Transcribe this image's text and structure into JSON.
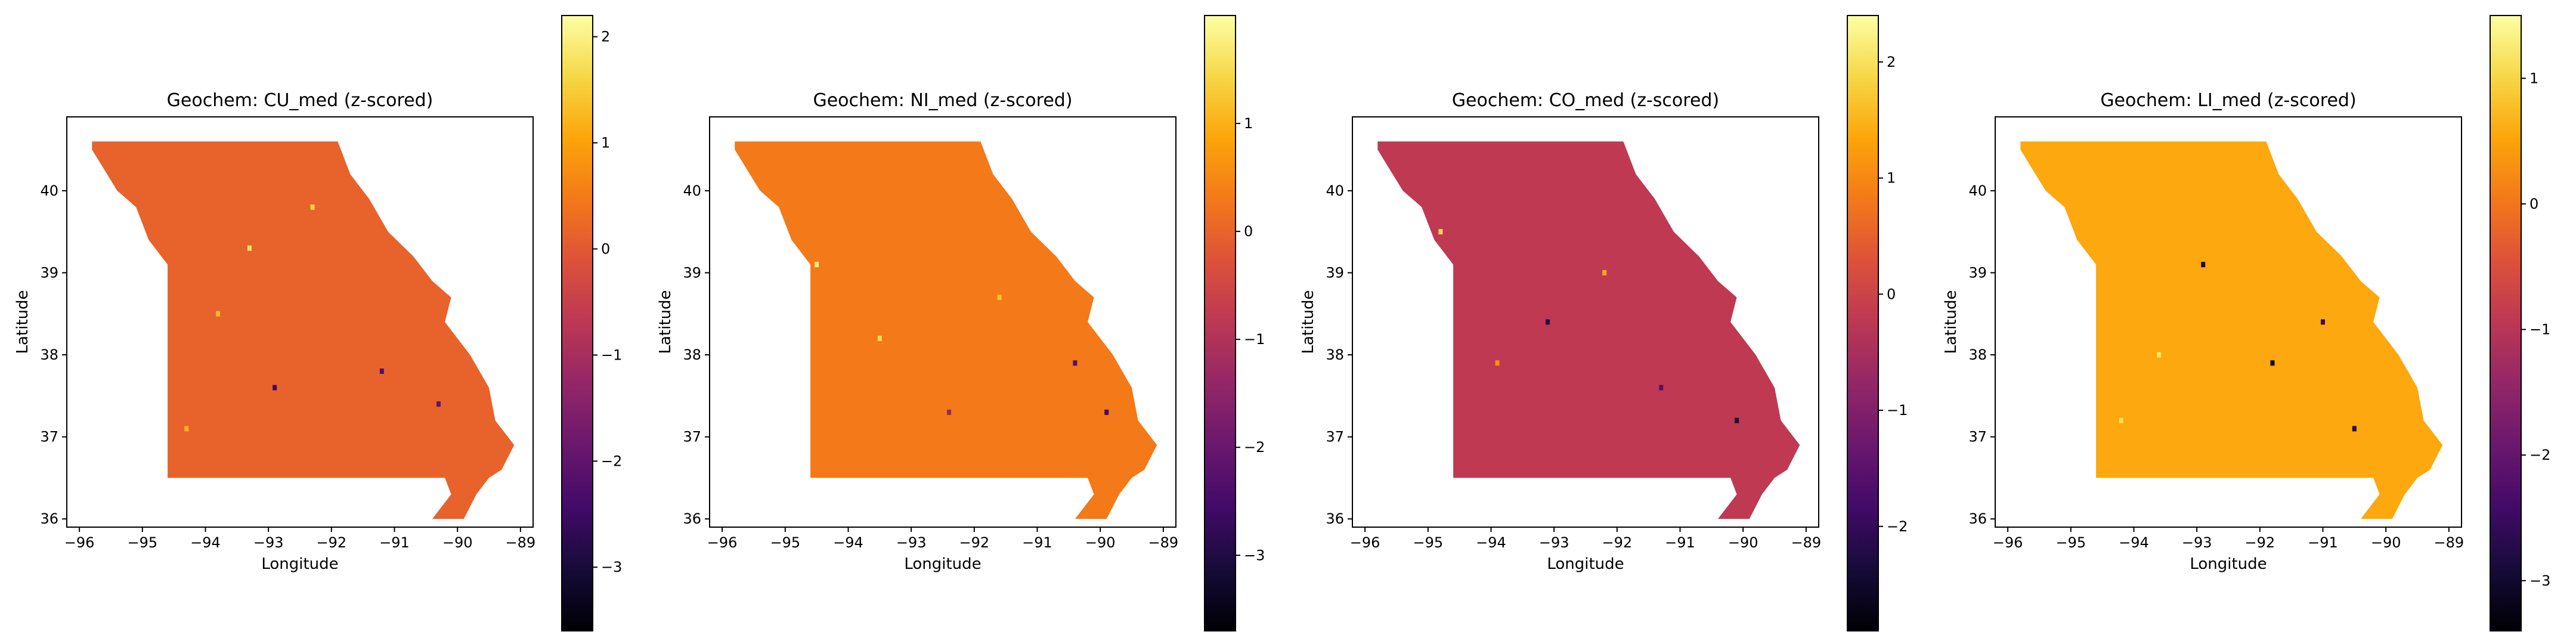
{
  "figure": {
    "layout": "1x4 panels, each with vertical colorbar to the right"
  },
  "chart_data": [
    {
      "type": "heatmap",
      "title": "Geochem: CU_med (z-scored)",
      "xlabel": "Longitude",
      "ylabel": "Latitude",
      "xlim": [
        -96.2,
        -88.8
      ],
      "ylim": [
        35.9,
        40.9
      ],
      "xticks": [
        -96,
        -95,
        -94,
        -93,
        -92,
        -91,
        -90,
        -89
      ],
      "yticks": [
        36,
        37,
        38,
        39,
        40
      ],
      "colormap": "inferno",
      "colorbar": {
        "min": -3.6,
        "max": 2.2,
        "ticks": [
          -3,
          -2,
          -1,
          0,
          1,
          2
        ]
      },
      "base_value": 0.15,
      "grid": false,
      "outliers": [
        {
          "lon": -93.3,
          "lat": 39.3,
          "value": 1.8
        },
        {
          "lon": -92.9,
          "lat": 37.6,
          "value": -2.6
        },
        {
          "lon": -91.2,
          "lat": 37.8,
          "value": -2.2
        },
        {
          "lon": -93.8,
          "lat": 38.5,
          "value": 1.3
        },
        {
          "lon": -90.3,
          "lat": 37.4,
          "value": -2.0
        },
        {
          "lon": -92.3,
          "lat": 39.8,
          "value": 1.6
        },
        {
          "lon": -94.3,
          "lat": 37.1,
          "value": 1.2
        }
      ]
    },
    {
      "type": "heatmap",
      "title": "Geochem: NI_med (z-scored)",
      "xlabel": "Longitude",
      "ylabel": "Latitude",
      "xlim": [
        -96.2,
        -88.8
      ],
      "ylim": [
        35.9,
        40.9
      ],
      "xticks": [
        -96,
        -95,
        -94,
        -93,
        -92,
        -91,
        -90,
        -89
      ],
      "yticks": [
        36,
        37,
        38,
        39,
        40
      ],
      "colormap": "inferno",
      "colorbar": {
        "min": -3.7,
        "max": 2.0,
        "ticks": [
          -3,
          -2,
          -1,
          0,
          1
        ]
      },
      "base_value": 0.3,
      "grid": false,
      "outliers": [
        {
          "lon": -94.5,
          "lat": 39.1,
          "value": 1.8
        },
        {
          "lon": -90.4,
          "lat": 37.9,
          "value": -2.3
        },
        {
          "lon": -89.9,
          "lat": 37.3,
          "value": -2.6
        },
        {
          "lon": -93.5,
          "lat": 38.2,
          "value": 1.5
        },
        {
          "lon": -91.6,
          "lat": 38.7,
          "value": 1.2
        },
        {
          "lon": -92.4,
          "lat": 37.3,
          "value": -1.4
        }
      ]
    },
    {
      "type": "heatmap",
      "title": "Geochem: CO_med (z-scored)",
      "xlabel": "Longitude",
      "ylabel": "Latitude",
      "xlim": [
        -96.2,
        -88.8
      ],
      "ylim": [
        35.9,
        40.9
      ],
      "xticks": [
        -96,
        -95,
        -94,
        -93,
        -92,
        -91,
        -90,
        -89
      ],
      "yticks": [
        36,
        37,
        38,
        39,
        40
      ],
      "colormap": "inferno",
      "colorbar": {
        "min": -2.9,
        "max": 2.4,
        "ticks": [
          -2,
          -1,
          0,
          1,
          2
        ]
      },
      "base_value": -0.2,
      "grid": false,
      "outliers": [
        {
          "lon": -94.8,
          "lat": 39.5,
          "value": 1.9
        },
        {
          "lon": -93.1,
          "lat": 38.4,
          "value": -2.2
        },
        {
          "lon": -90.1,
          "lat": 37.2,
          "value": -2.5
        },
        {
          "lon": -92.2,
          "lat": 39.0,
          "value": 1.4
        },
        {
          "lon": -91.3,
          "lat": 37.6,
          "value": -1.6
        },
        {
          "lon": -93.9,
          "lat": 37.9,
          "value": 1.1
        }
      ]
    },
    {
      "type": "heatmap",
      "title": "Geochem: LI_med (z-scored)",
      "xlabel": "Longitude",
      "ylabel": "Latitude",
      "xlim": [
        -96.2,
        -88.8
      ],
      "ylim": [
        35.9,
        40.9
      ],
      "xticks": [
        -96,
        -95,
        -94,
        -93,
        -92,
        -91,
        -90,
        -89
      ],
      "yticks": [
        36,
        37,
        38,
        39,
        40
      ],
      "colormap": "inferno",
      "colorbar": {
        "min": -3.4,
        "max": 1.5,
        "ticks": [
          -3,
          -2,
          -1,
          0,
          1
        ]
      },
      "base_value": 0.55,
      "grid": false,
      "outliers": [
        {
          "lon": -92.9,
          "lat": 39.1,
          "value": -3.0
        },
        {
          "lon": -91.8,
          "lat": 37.9,
          "value": -3.2
        },
        {
          "lon": -90.5,
          "lat": 37.1,
          "value": -2.8
        },
        {
          "lon": -93.6,
          "lat": 38.0,
          "value": 1.2
        },
        {
          "lon": -94.2,
          "lat": 37.2,
          "value": 1.1
        },
        {
          "lon": -91.0,
          "lat": 38.4,
          "value": -2.5
        }
      ]
    }
  ]
}
